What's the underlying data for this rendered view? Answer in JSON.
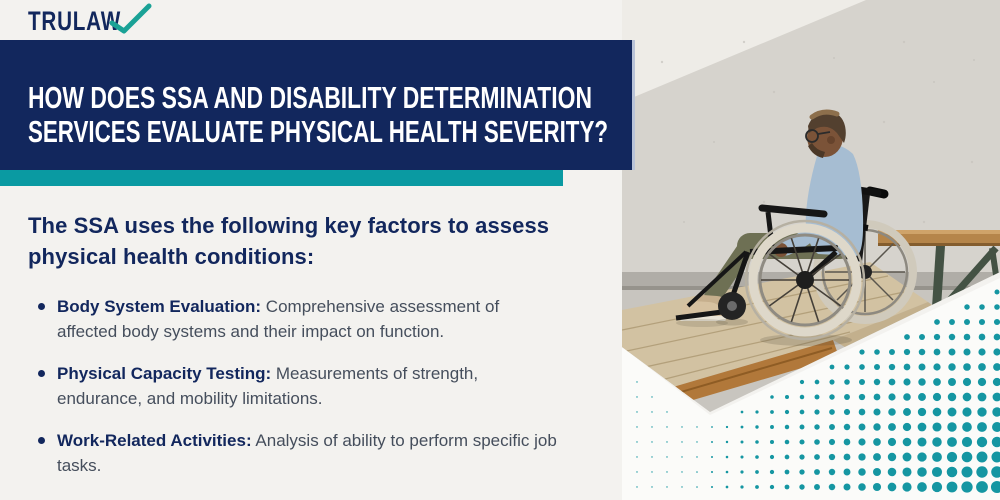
{
  "logo": {
    "text": "TRULAW"
  },
  "banner": {
    "heading_line1": "HOW DOES SSA AND DISABILITY DETERMINATION",
    "heading_line2": "SERVICES EVALUATE PHYSICAL HEALTH SEVERITY?"
  },
  "content": {
    "subheading": "The SSA uses the following key factors to assess physical health conditions:",
    "bullets": [
      {
        "label": "Body System Evaluation:",
        "text": "Comprehensive assessment of affected body systems and their impact on function."
      },
      {
        "label": "Physical Capacity Testing:",
        "text": "Measurements of strength, endurance, and mobility limitations."
      },
      {
        "label": "Work-Related Activities:",
        "text": "Analysis of ability to perform specific job tasks."
      }
    ]
  },
  "photo": {
    "description": "Man wearing glasses and a light blue denim shirt seated in a wheelchair on a wooden ramp beside a wooden bench"
  },
  "colors": {
    "navy": "#12275d",
    "teal": "#0a9aa2",
    "checkmark_teal": "#1aa296",
    "halftone_teal": "#1596a2",
    "body_text": "#454e5c",
    "background": "#f3f2ef",
    "heading_text": "#ffffff"
  }
}
